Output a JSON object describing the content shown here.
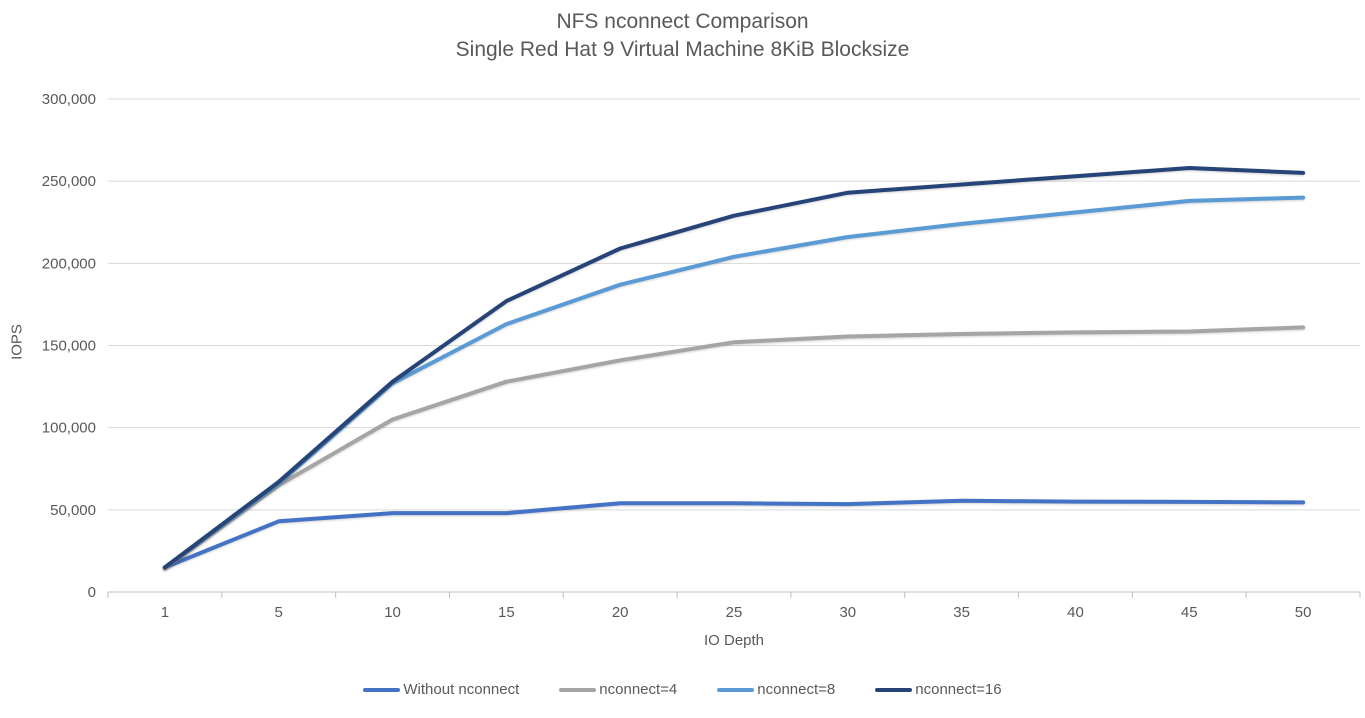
{
  "chart": {
    "title_line1": "NFS nconnect Comparison",
    "title_line2": "Single Red Hat 9 Virtual Machine 8KiB Blocksize"
  },
  "chart_data": {
    "type": "line",
    "title": "NFS nconnect Comparison",
    "subtitle": "Single Red Hat 9 Virtual Machine 8KiB Blocksize",
    "xlabel": "IO Depth",
    "ylabel": "IOPS",
    "categories": [
      1,
      5,
      10,
      15,
      20,
      25,
      30,
      35,
      40,
      45,
      50
    ],
    "ylim": [
      0,
      300000
    ],
    "y_ticks": [
      0,
      50000,
      100000,
      150000,
      200000,
      250000,
      300000
    ],
    "y_tick_labels": [
      "0",
      "50,000",
      "100,000",
      "150,000",
      "200,000",
      "250,000",
      "300,000"
    ],
    "grid": "horizontal",
    "legend_position": "bottom",
    "colors": {
      "axis_text": "#595959",
      "gridline": "#d9d9d9",
      "axis_line": "#bfbfbf"
    },
    "series": [
      {
        "name": "Without nconnect",
        "color": "#4472C4",
        "values": [
          15000,
          43000,
          48000,
          48000,
          54000,
          54000,
          53500,
          55500,
          55000,
          54800,
          54500
        ]
      },
      {
        "name": "nconnect=4",
        "color": "#A5A5A5",
        "values": [
          14500,
          65000,
          105000,
          128000,
          141000,
          152000,
          155500,
          157000,
          158000,
          158500,
          161000
        ]
      },
      {
        "name": "nconnect=8",
        "color": "#5B9BD5",
        "values": [
          15000,
          66000,
          127000,
          163000,
          187000,
          204000,
          216000,
          224000,
          231000,
          238000,
          240000
        ]
      },
      {
        "name": "nconnect=16",
        "color": "#264478",
        "values": [
          15000,
          67000,
          128000,
          177000,
          209000,
          229000,
          243000,
          248000,
          253000,
          258000,
          255000
        ]
      }
    ]
  }
}
